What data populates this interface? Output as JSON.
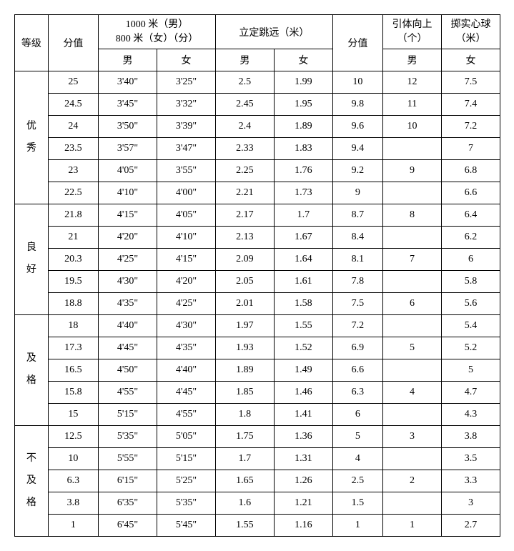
{
  "headers": {
    "grade": "等级",
    "score1": "分值",
    "run": "1000 米（男）\n800 米（女）（分）",
    "run_m": "男",
    "run_f": "女",
    "jump": "立定跳远（米）",
    "jump_m": "男",
    "jump_f": "女",
    "score2": "分值",
    "pullup": "引体向上\n（个）",
    "pullup_sub": "男",
    "ball": "掷实心球\n（米）",
    "ball_sub": "女"
  },
  "groups": [
    {
      "label": "优秀",
      "rows": [
        {
          "s1": "25",
          "rm": "3'40\"",
          "rf": "3'25\"",
          "jm": "2.5",
          "jf": "1.99",
          "s2": "10",
          "pu": "12",
          "bl": "7.5"
        },
        {
          "s1": "24.5",
          "rm": "3'45\"",
          "rf": "3'32\"",
          "jm": "2.45",
          "jf": "1.95",
          "s2": "9.8",
          "pu": "11",
          "bl": "7.4"
        },
        {
          "s1": "24",
          "rm": "3'50\"",
          "rf": "3'39\"",
          "jm": "2.4",
          "jf": "1.89",
          "s2": "9.6",
          "pu": "10",
          "bl": "7.2"
        },
        {
          "s1": "23.5",
          "rm": "3'57\"",
          "rf": "3'47\"",
          "jm": "2.33",
          "jf": "1.83",
          "s2": "9.4",
          "pu": "",
          "bl": "7"
        },
        {
          "s1": "23",
          "rm": "4'05\"",
          "rf": "3'55\"",
          "jm": "2.25",
          "jf": "1.76",
          "s2": "9.2",
          "pu": "9",
          "bl": "6.8"
        },
        {
          "s1": "22.5",
          "rm": "4'10\"",
          "rf": "4'00\"",
          "jm": "2.21",
          "jf": "1.73",
          "s2": "9",
          "pu": "",
          "bl": "6.6"
        }
      ]
    },
    {
      "label": "良好",
      "rows": [
        {
          "s1": "21.8",
          "rm": "4'15\"",
          "rf": "4'05\"",
          "jm": "2.17",
          "jf": "1.7",
          "s2": "8.7",
          "pu": "8",
          "bl": "6.4"
        },
        {
          "s1": "21",
          "rm": "4'20\"",
          "rf": "4'10\"",
          "jm": "2.13",
          "jf": "1.67",
          "s2": "8.4",
          "pu": "",
          "bl": "6.2"
        },
        {
          "s1": "20.3",
          "rm": "4'25\"",
          "rf": "4'15\"",
          "jm": "2.09",
          "jf": "1.64",
          "s2": "8.1",
          "pu": "7",
          "bl": "6"
        },
        {
          "s1": "19.5",
          "rm": "4'30\"",
          "rf": "4'20\"",
          "jm": "2.05",
          "jf": "1.61",
          "s2": "7.8",
          "pu": "",
          "bl": "5.8"
        },
        {
          "s1": "18.8",
          "rm": "4'35\"",
          "rf": "4'25\"",
          "jm": "2.01",
          "jf": "1.58",
          "s2": "7.5",
          "pu": "6",
          "bl": "5.6"
        }
      ]
    },
    {
      "label": "及格",
      "rows": [
        {
          "s1": "18",
          "rm": "4'40\"",
          "rf": "4'30\"",
          "jm": "1.97",
          "jf": "1.55",
          "s2": "7.2",
          "pu": "",
          "bl": "5.4"
        },
        {
          "s1": "17.3",
          "rm": "4'45\"",
          "rf": "4'35\"",
          "jm": "1.93",
          "jf": "1.52",
          "s2": "6.9",
          "pu": "5",
          "bl": "5.2"
        },
        {
          "s1": "16.5",
          "rm": "4'50\"",
          "rf": "4'40\"",
          "jm": "1.89",
          "jf": "1.49",
          "s2": "6.6",
          "pu": "",
          "bl": "5"
        },
        {
          "s1": "15.8",
          "rm": "4'55\"",
          "rf": "4'45\"",
          "jm": "1.85",
          "jf": "1.46",
          "s2": "6.3",
          "pu": "4",
          "bl": "4.7"
        },
        {
          "s1": "15",
          "rm": "5'15\"",
          "rf": "4'55\"",
          "jm": "1.8",
          "jf": "1.41",
          "s2": "6",
          "pu": "",
          "bl": "4.3"
        }
      ]
    },
    {
      "label": "不及格",
      "rows": [
        {
          "s1": "12.5",
          "rm": "5'35\"",
          "rf": "5'05\"",
          "jm": "1.75",
          "jf": "1.36",
          "s2": "5",
          "pu": "3",
          "bl": "3.8"
        },
        {
          "s1": "10",
          "rm": "5'55\"",
          "rf": "5'15\"",
          "jm": "1.7",
          "jf": "1.31",
          "s2": "4",
          "pu": "",
          "bl": "3.5"
        },
        {
          "s1": "6.3",
          "rm": "6'15\"",
          "rf": "5'25\"",
          "jm": "1.65",
          "jf": "1.26",
          "s2": "2.5",
          "pu": "2",
          "bl": "3.3"
        },
        {
          "s1": "3.8",
          "rm": "6'35\"",
          "rf": "5'35\"",
          "jm": "1.6",
          "jf": "1.21",
          "s2": "1.5",
          "pu": "",
          "bl": "3"
        },
        {
          "s1": "1",
          "rm": "6'45\"",
          "rf": "5'45\"",
          "jm": "1.55",
          "jf": "1.16",
          "s2": "1",
          "pu": "1",
          "bl": "2.7"
        }
      ]
    }
  ]
}
